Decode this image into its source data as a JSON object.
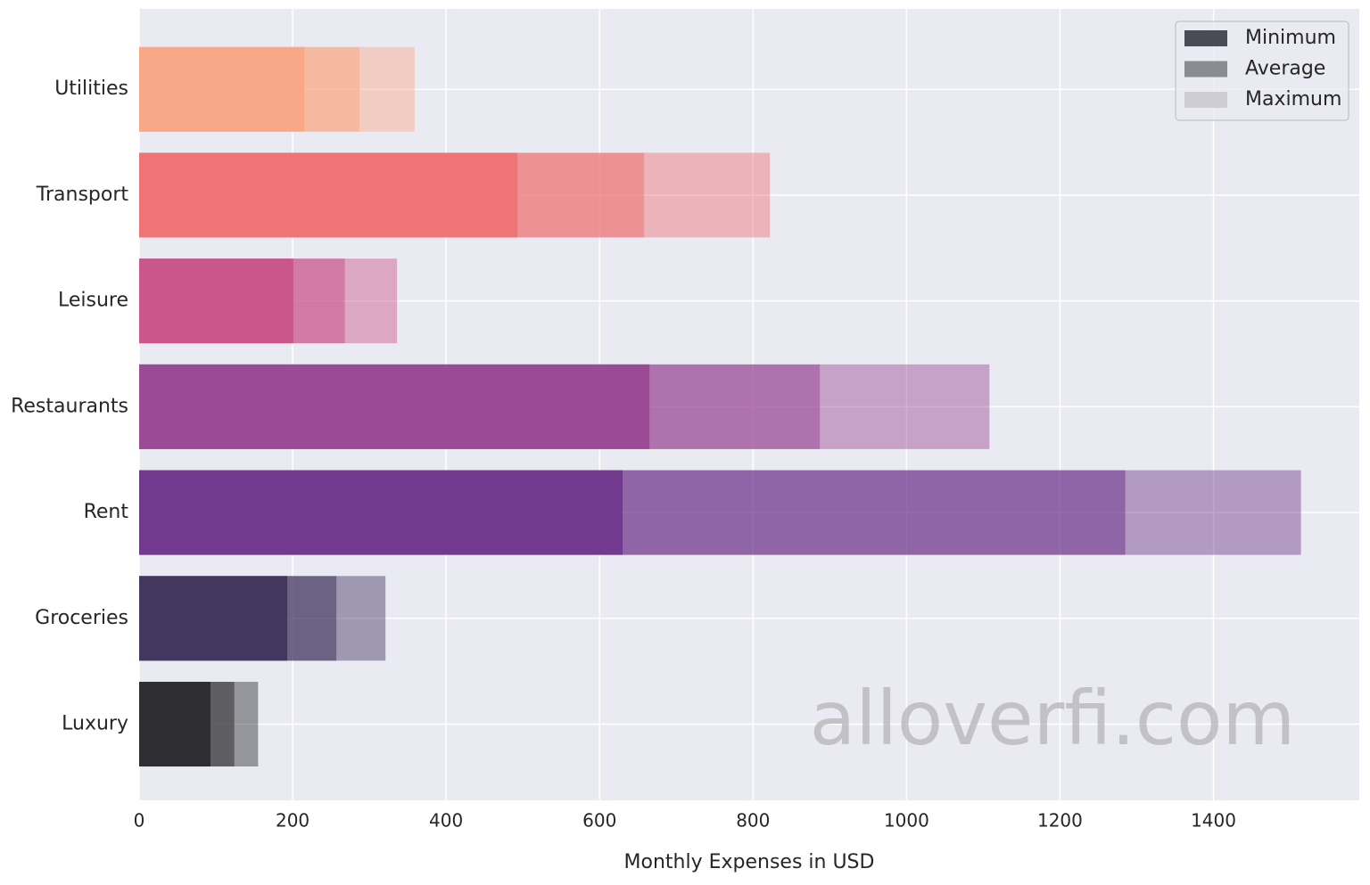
{
  "chart_data": {
    "type": "bar",
    "orientation": "horizontal",
    "overlay": true,
    "categories": [
      "Utilities",
      "Transport",
      "Leisure",
      "Restaurants",
      "Rent",
      "Groceries",
      "Luxury"
    ],
    "colors": [
      "#f9a887",
      "#ee7475",
      "#c9578a",
      "#9b4b95",
      "#713a8f",
      "#43365f",
      "#2f2f33"
    ],
    "series": [
      {
        "name": "Minimum",
        "color": "#2f2f3a",
        "values": [
          215,
          493,
          201,
          665,
          630,
          193,
          93
        ]
      },
      {
        "name": "Average",
        "color": "#7a7a80",
        "values": [
          287,
          658,
          268,
          887,
          1285,
          257,
          124
        ]
      },
      {
        "name": "Maximum",
        "color": "#c8c8cc",
        "values": [
          359,
          822,
          336,
          1108,
          1514,
          321,
          155
        ]
      }
    ],
    "x_label": "Monthly Expenses in USD",
    "xlim": [
      0,
      1590
    ],
    "xticks": [
      0,
      200,
      400,
      600,
      800,
      1000,
      1200,
      1400
    ],
    "grid": true,
    "legend": "upper right",
    "watermark": "alloverfi.com"
  }
}
